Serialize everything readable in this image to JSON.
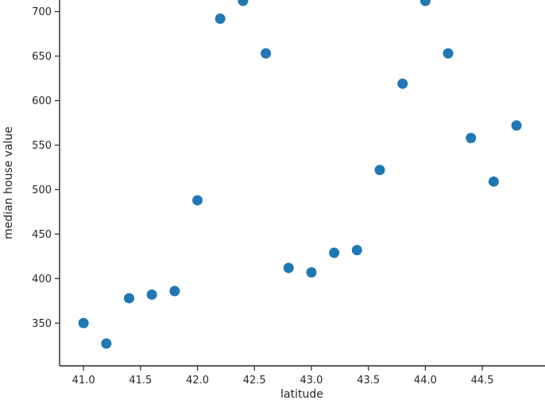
{
  "chart_data": {
    "type": "scatter",
    "title": "",
    "xlabel": "latitude",
    "ylabel": "median house value",
    "x": [
      41.0,
      41.2,
      41.4,
      41.6,
      41.8,
      42.0,
      42.2,
      42.4,
      42.6,
      42.8,
      43.0,
      43.2,
      43.4,
      43.6,
      43.8,
      44.0,
      44.2,
      44.4,
      44.6,
      44.8
    ],
    "y": [
      350,
      327,
      378,
      382,
      386,
      488,
      692,
      712,
      653,
      412,
      407,
      429,
      432,
      522,
      619,
      712,
      653,
      558,
      509,
      572
    ],
    "xlim": [
      40.79,
      45.05
    ],
    "ylim": [
      302,
      713
    ],
    "x_ticks": [
      41.0,
      41.5,
      42.0,
      42.5,
      43.0,
      43.5,
      44.0,
      44.5
    ],
    "x_tick_labels": [
      "41.0",
      "41.5",
      "42.0",
      "42.5",
      "43.0",
      "43.5",
      "44.0",
      "44.5"
    ],
    "y_ticks": [
      350,
      400,
      450,
      500,
      550,
      600,
      650,
      700
    ],
    "y_tick_labels": [
      "350",
      "400",
      "450",
      "500",
      "550",
      "600",
      "650",
      "700"
    ],
    "marker_color": "#1f77b4",
    "marker_radius": 6.5,
    "axis_color": "#262626",
    "background_color": "#ffffff",
    "grid": false,
    "legend": "none"
  }
}
